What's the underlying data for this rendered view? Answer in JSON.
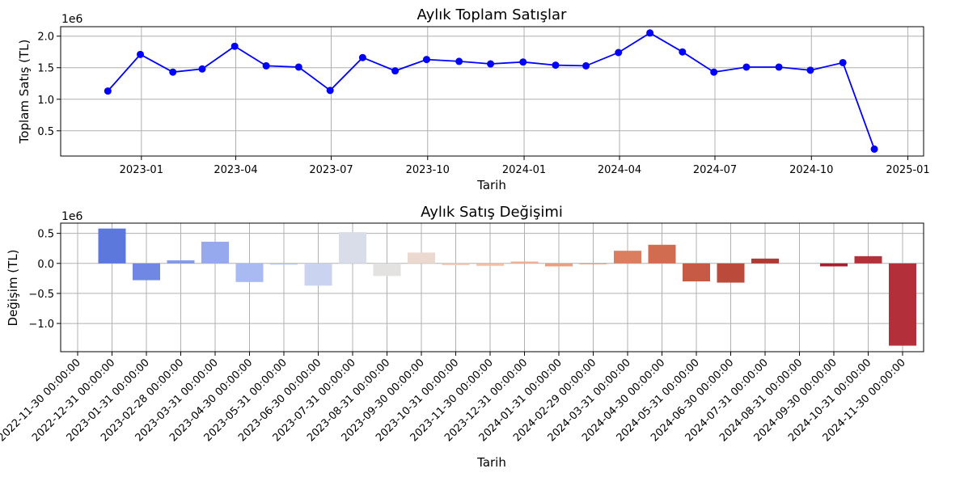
{
  "chart_data": [
    {
      "type": "line",
      "title": "Aylık Toplam Satışlar",
      "xlabel": "Tarih",
      "ylabel": "Toplam Satış (TL)",
      "offset_text": "1e6",
      "color": "#0000ff",
      "grid": true,
      "ylim": [
        0.1,
        2.15
      ],
      "xlim": [
        "2022-10-16",
        "2025-01-16"
      ],
      "x_ticks": [
        "2023-01-01",
        "2023-04-01",
        "2023-07-01",
        "2023-10-01",
        "2024-01-01",
        "2024-04-01",
        "2024-07-01",
        "2024-10-01",
        "2025-01-01"
      ],
      "x_tick_labels": [
        "2023-01",
        "2023-04",
        "2023-07",
        "2023-10",
        "2024-01",
        "2024-04",
        "2024-07",
        "2024-10",
        "2025-01"
      ],
      "y_ticks": [
        0.5,
        1.0,
        1.5,
        2.0
      ],
      "y_tick_labels": [
        "0.5",
        "1.0",
        "1.5",
        "2.0"
      ],
      "x": [
        "2022-11-30",
        "2022-12-31",
        "2023-01-31",
        "2023-02-28",
        "2023-03-31",
        "2023-04-30",
        "2023-05-31",
        "2023-06-30",
        "2023-07-31",
        "2023-08-31",
        "2023-09-30",
        "2023-10-31",
        "2023-11-30",
        "2023-12-31",
        "2024-01-31",
        "2024-02-29",
        "2024-03-31",
        "2024-04-30",
        "2024-05-31",
        "2024-06-30",
        "2024-07-31",
        "2024-08-31",
        "2024-09-30",
        "2024-10-31",
        "2024-11-30"
      ],
      "values": [
        1.13,
        1.71,
        1.43,
        1.48,
        1.84,
        1.53,
        1.51,
        1.14,
        1.66,
        1.45,
        1.63,
        1.6,
        1.56,
        1.59,
        1.54,
        1.53,
        1.74,
        2.05,
        1.75,
        1.43,
        1.51,
        1.51,
        1.46,
        1.58,
        0.21
      ]
    },
    {
      "type": "bar",
      "title": "Aylık Satış Değişimi",
      "xlabel": "Tarih",
      "ylabel": "Değişim (TL)",
      "offset_text": "1e6",
      "grid": true,
      "ylim": [
        -1.47,
        0.67
      ],
      "y_ticks": [
        -1.0,
        -0.5,
        0.0,
        0.5
      ],
      "y_tick_labels": [
        "−1.0",
        "−0.5",
        "0.0",
        "0.5"
      ],
      "categories": [
        "2022-11-30 00:00:00",
        "2022-12-31 00:00:00",
        "2023-01-31 00:00:00",
        "2023-02-28 00:00:00",
        "2023-03-31 00:00:00",
        "2023-04-30 00:00:00",
        "2023-05-31 00:00:00",
        "2023-06-30 00:00:00",
        "2023-07-31 00:00:00",
        "2023-08-31 00:00:00",
        "2023-09-30 00:00:00",
        "2023-10-31 00:00:00",
        "2023-11-30 00:00:00",
        "2023-12-31 00:00:00",
        "2024-01-31 00:00:00",
        "2024-02-29 00:00:00",
        "2024-03-31 00:00:00",
        "2024-04-30 00:00:00",
        "2024-05-31 00:00:00",
        "2024-06-30 00:00:00",
        "2024-07-31 00:00:00",
        "2024-08-31 00:00:00",
        "2024-09-30 00:00:00",
        "2024-10-31 00:00:00",
        "2024-11-30 00:00:00"
      ],
      "values": [
        null,
        0.58,
        -0.28,
        0.05,
        0.36,
        -0.31,
        -0.02,
        -0.37,
        0.52,
        -0.21,
        0.18,
        -0.03,
        -0.04,
        0.03,
        -0.05,
        -0.01,
        0.21,
        0.31,
        -0.3,
        -0.32,
        0.08,
        0.0,
        -0.05,
        0.12,
        -1.37
      ],
      "colors": [
        "#4a62d6",
        "#5d78dc",
        "#7088e3",
        "#8399ea",
        "#96a9ee",
        "#a9b9f2",
        "#bac7f3",
        "#cad4f1",
        "#d8dde9",
        "#e4e2e0",
        "#ebd9d0",
        "#eecdbd",
        "#efbfa9",
        "#edaf94",
        "#e99f81",
        "#e38f6f",
        "#db7e5f",
        "#d16c51",
        "#c65a45",
        "#bb4a3b",
        "#ae3c32",
        "#b2282f",
        "#a82030",
        "#b0333a",
        "#b3303b"
      ]
    }
  ]
}
